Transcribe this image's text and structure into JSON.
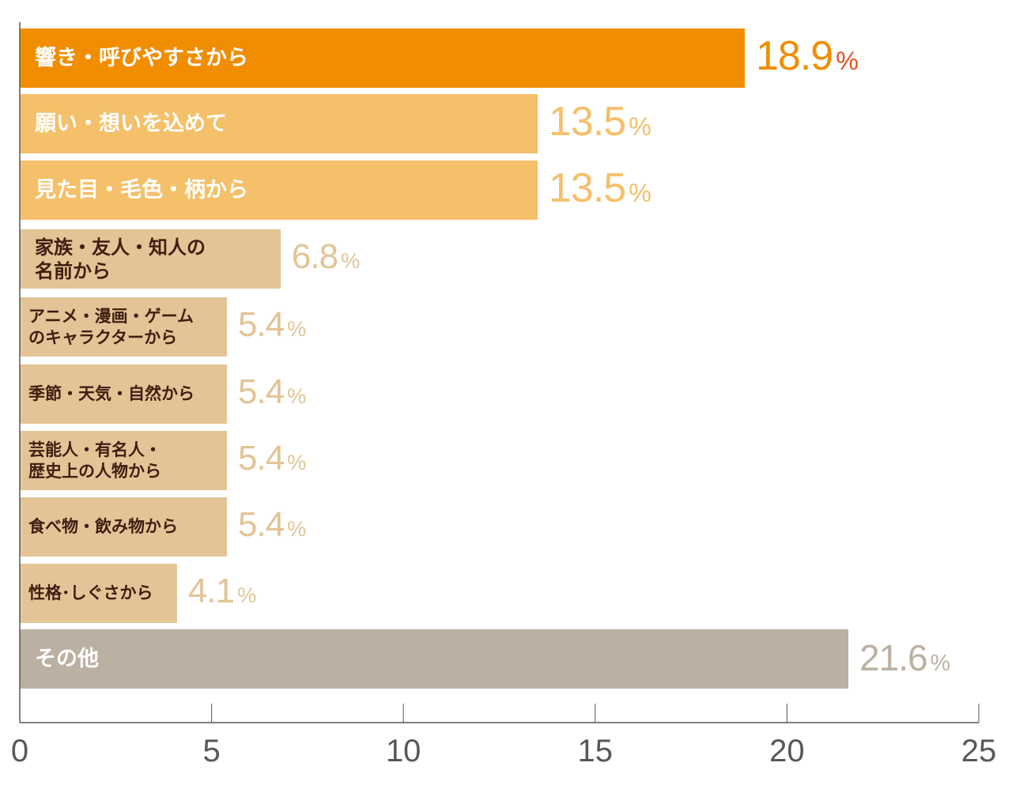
{
  "chart_data": {
    "type": "bar",
    "orientation": "horizontal",
    "categories": [
      "響き・呼びやすさから",
      "願い・想いを込めて",
      "見た目・毛色・柄から",
      "家族・友人・知人の\n名前から",
      "アニメ・漫画・ゲーム\nのキャラクターから",
      "季節・天気・自然から",
      "芸能人・有名人・\n歴史上の人物から",
      "食べ物・飲み物から",
      "性格･しぐさから",
      "その他"
    ],
    "values": [
      18.9,
      13.5,
      13.5,
      6.8,
      5.4,
      5.4,
      5.4,
      5.4,
      4.1,
      21.6
    ],
    "value_labels": [
      "18.9",
      "13.5",
      "13.5",
      "6.8",
      "5.4",
      "5.4",
      "5.4",
      "5.4",
      "4.1",
      "21.6"
    ],
    "unit": "%",
    "xlim": [
      0,
      25
    ],
    "xticks": [
      "0",
      "5",
      "10",
      "15",
      "20",
      "25"
    ],
    "grid": false,
    "legend": "none",
    "colors": {
      "top": "#F18D00",
      "top_percent": "#E8501E",
      "second": "#F5C06A",
      "middle": "#E3C496",
      "other": "#BCB0A2",
      "middle_text": "#3E1E10",
      "axis": "#595757"
    }
  }
}
